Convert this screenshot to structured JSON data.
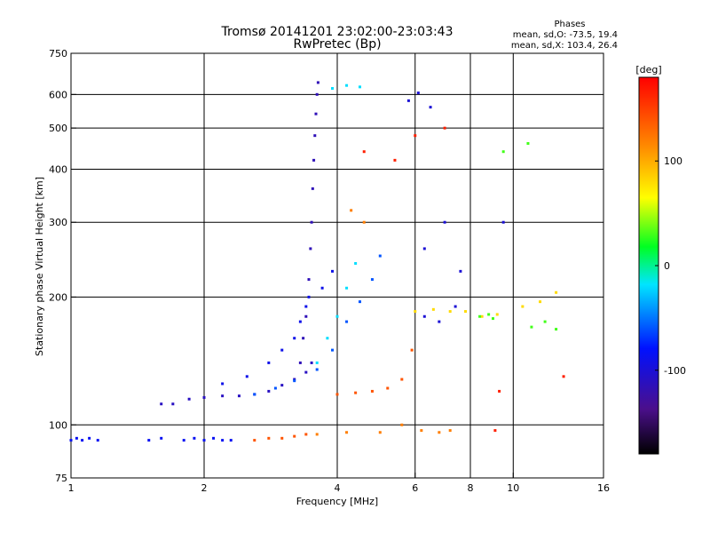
{
  "chart_data": {
    "type": "scatter",
    "title": "Tromsø 20141201 23:02:00-23:03:43",
    "subtitle": "RwPretec (Bp)",
    "stats": {
      "heading": "Phases",
      "line1": "mean, sd,O: -73.5, 19.4",
      "line2": "mean, sd,X: 103.4, 26.4"
    },
    "xlabel": "Frequency [MHz]",
    "ylabel": "Stationary phase Virtual Height [km]",
    "x_scale": "log",
    "y_scale": "log",
    "xlim": [
      1,
      16
    ],
    "ylim": [
      75,
      750
    ],
    "x_ticks": [
      1,
      2,
      4,
      6,
      8,
      10,
      16
    ],
    "y_ticks": [
      75,
      100,
      200,
      300,
      400,
      500,
      600,
      750
    ],
    "x_gridlines": [
      2,
      4,
      6,
      8,
      10
    ],
    "y_gridlines": [
      100,
      200,
      300,
      400,
      500,
      600
    ],
    "colorbar": {
      "label": "[deg]",
      "range": [
        -180,
        180
      ],
      "ticks": [
        100,
        0,
        -100
      ],
      "colormap": "rainbow (black-purple-blue-cyan-green-yellow-orange-red)"
    },
    "series": [
      {
        "phase_deg": -85,
        "points": [
          [
            1,
            92
          ],
          [
            1.03,
            93
          ],
          [
            1.06,
            92
          ],
          [
            1.1,
            93
          ],
          [
            1.15,
            92
          ],
          [
            1.5,
            92
          ],
          [
            1.6,
            93
          ],
          [
            1.8,
            92
          ],
          [
            1.9,
            93
          ],
          [
            2.0,
            92
          ],
          [
            2.1,
            93
          ],
          [
            2.2,
            92
          ],
          [
            2.3,
            92
          ]
        ]
      },
      {
        "phase_deg": -110,
        "points": [
          [
            1.6,
            112
          ],
          [
            1.7,
            112
          ],
          [
            1.85,
            115
          ],
          [
            2.0,
            116
          ],
          [
            2.2,
            117
          ],
          [
            2.4,
            117
          ],
          [
            2.6,
            118
          ],
          [
            2.8,
            120
          ],
          [
            3.0,
            124
          ],
          [
            3.2,
            128
          ],
          [
            3.4,
            133
          ],
          [
            3.5,
            140
          ]
        ]
      },
      {
        "phase_deg": -115,
        "points": [
          [
            3.3,
            140
          ],
          [
            3.35,
            160
          ],
          [
            3.4,
            180
          ],
          [
            3.45,
            220
          ],
          [
            3.48,
            260
          ],
          [
            3.5,
            300
          ],
          [
            3.52,
            360
          ],
          [
            3.54,
            420
          ],
          [
            3.56,
            480
          ],
          [
            3.58,
            540
          ],
          [
            3.6,
            600
          ],
          [
            3.62,
            640
          ]
        ]
      },
      {
        "phase_deg": -90,
        "points": [
          [
            2.2,
            125
          ],
          [
            2.5,
            130
          ],
          [
            2.8,
            140
          ],
          [
            3.0,
            150
          ],
          [
            3.2,
            160
          ],
          [
            3.3,
            175
          ],
          [
            3.4,
            190
          ],
          [
            3.45,
            200
          ],
          [
            3.7,
            210
          ],
          [
            3.9,
            230
          ]
        ]
      },
      {
        "phase_deg": -60,
        "points": [
          [
            2.6,
            118
          ],
          [
            2.9,
            122
          ],
          [
            3.2,
            127
          ],
          [
            3.6,
            135
          ],
          [
            3.9,
            150
          ],
          [
            4.2,
            175
          ],
          [
            4.5,
            195
          ],
          [
            4.8,
            220
          ],
          [
            5.0,
            250
          ]
        ]
      },
      {
        "phase_deg": -20,
        "points": [
          [
            3.6,
            140
          ],
          [
            3.8,
            160
          ],
          [
            4.0,
            180
          ],
          [
            4.2,
            210
          ],
          [
            4.4,
            240
          ],
          [
            3.9,
            620
          ],
          [
            4.2,
            630
          ],
          [
            4.5,
            625
          ]
        ]
      },
      {
        "phase_deg": 140,
        "points": [
          [
            2.6,
            92
          ],
          [
            2.8,
            93
          ],
          [
            3.0,
            93
          ],
          [
            3.2,
            94
          ],
          [
            3.4,
            95
          ],
          [
            4.0,
            118
          ],
          [
            4.4,
            119
          ],
          [
            4.8,
            120
          ],
          [
            5.2,
            122
          ],
          [
            5.6,
            128
          ],
          [
            5.9,
            150
          ]
        ]
      },
      {
        "phase_deg": 120,
        "points": [
          [
            3.6,
            95
          ],
          [
            4.2,
            96
          ],
          [
            5.0,
            96
          ],
          [
            5.6,
            100
          ],
          [
            6.2,
            97
          ],
          [
            6.8,
            96
          ],
          [
            7.2,
            97
          ],
          [
            4.3,
            320
          ],
          [
            4.6,
            300
          ]
        ]
      },
      {
        "phase_deg": 80,
        "points": [
          [
            6.0,
            185
          ],
          [
            6.6,
            187
          ],
          [
            7.2,
            185
          ],
          [
            7.8,
            185
          ],
          [
            8.5,
            180
          ],
          [
            9.2,
            182
          ],
          [
            10.5,
            190
          ],
          [
            11.5,
            195
          ],
          [
            12.5,
            205
          ]
        ]
      },
      {
        "phase_deg": -100,
        "points": [
          [
            6.3,
            180
          ],
          [
            6.8,
            175
          ],
          [
            7.4,
            190
          ],
          [
            5.8,
            580
          ],
          [
            6.1,
            605
          ],
          [
            6.5,
            560
          ],
          [
            7.0,
            300
          ],
          [
            6.3,
            260
          ],
          [
            7.6,
            230
          ],
          [
            9.5,
            300
          ]
        ]
      },
      {
        "phase_deg": 30,
        "points": [
          [
            8.4,
            180
          ],
          [
            8.8,
            182
          ],
          [
            9.0,
            178
          ],
          [
            11.0,
            170
          ],
          [
            11.8,
            175
          ],
          [
            12.5,
            168
          ],
          [
            10.8,
            460
          ],
          [
            9.5,
            440
          ]
        ]
      },
      {
        "phase_deg": 165,
        "points": [
          [
            5.4,
            420
          ],
          [
            6.0,
            480
          ],
          [
            7.0,
            500
          ],
          [
            4.6,
            440
          ],
          [
            9.1,
            97
          ],
          [
            13.0,
            130
          ],
          [
            9.3,
            120
          ]
        ]
      }
    ]
  }
}
